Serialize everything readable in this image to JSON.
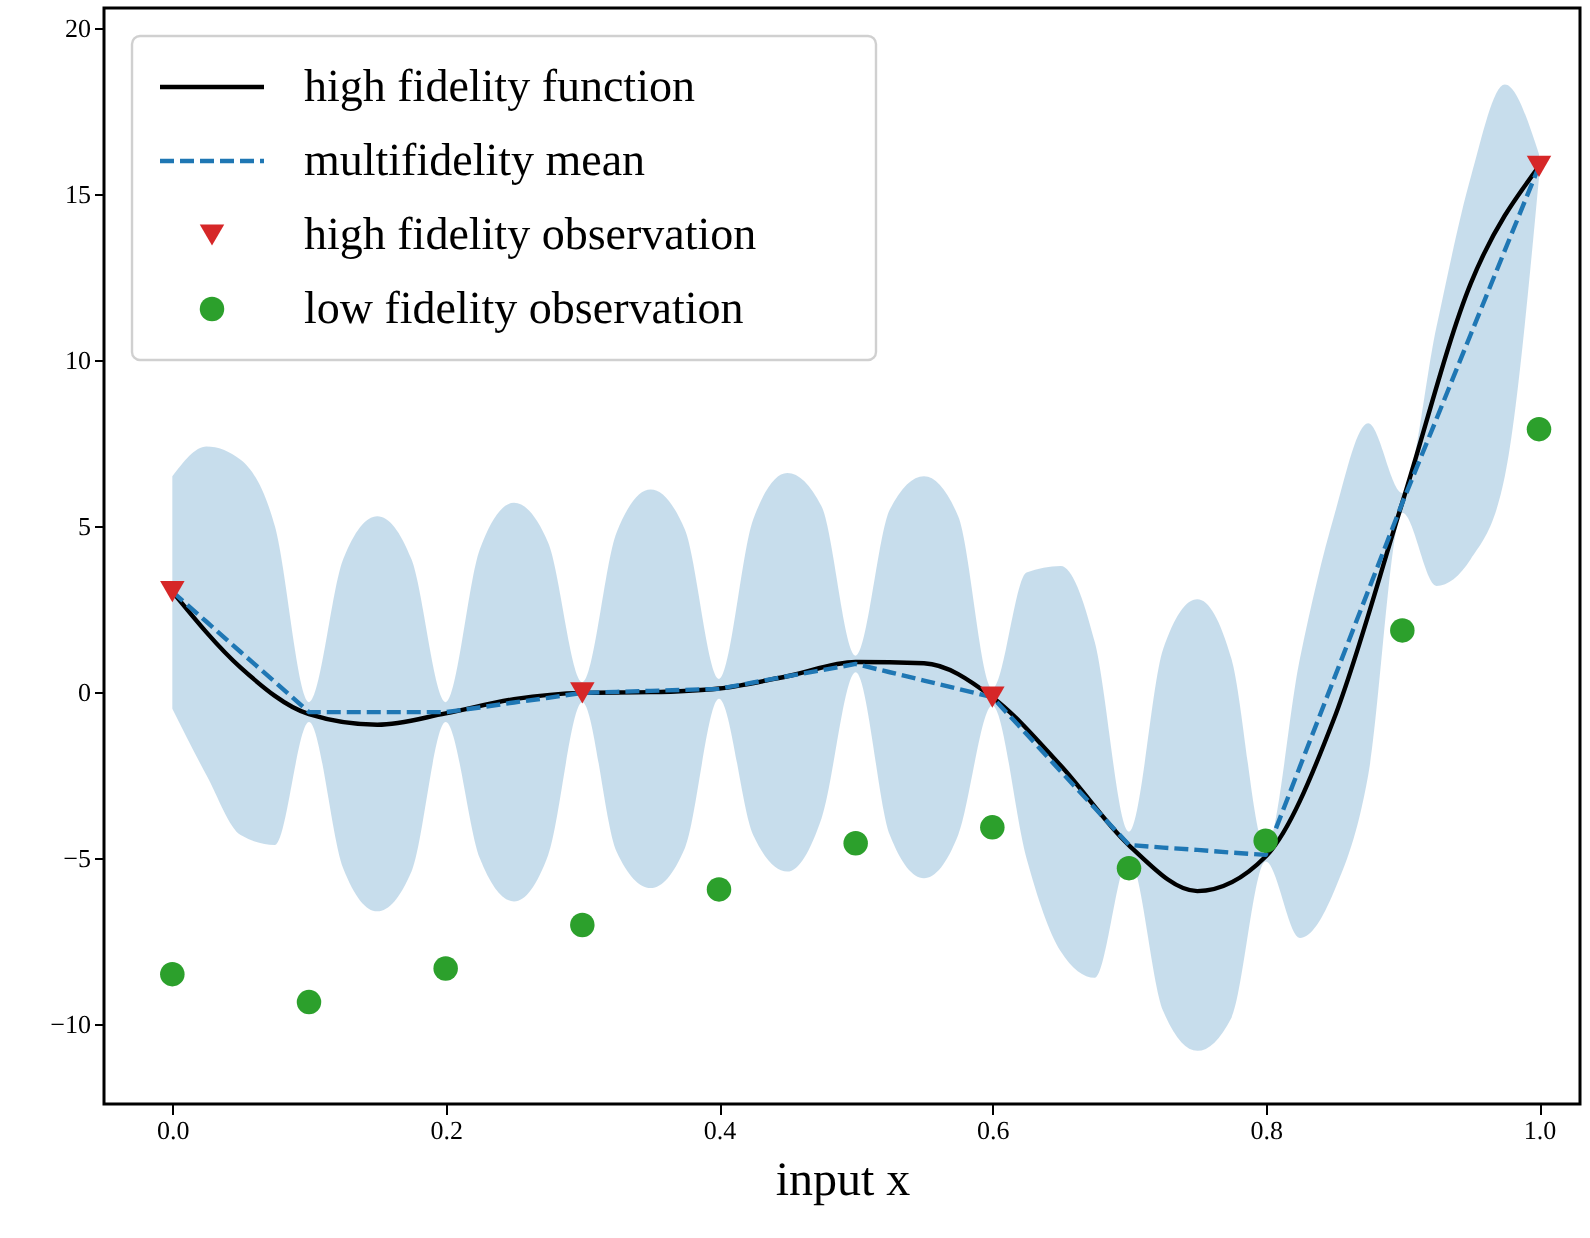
{
  "chart_data": {
    "type": "line",
    "xlabel": "input x",
    "xlim": [
      -0.05,
      1.03
    ],
    "ylim": [
      -12.4,
      20.6
    ],
    "xticks": [
      {
        "value": 0,
        "label": "0.0"
      },
      {
        "value": 0.2,
        "label": "0.2"
      },
      {
        "value": 0.4,
        "label": "0.4"
      },
      {
        "value": 0.6,
        "label": "0.6"
      },
      {
        "value": 0.8,
        "label": "0.8"
      },
      {
        "value": 1,
        "label": "1.0"
      }
    ],
    "yticks": [
      {
        "value": -10,
        "label": "−10"
      },
      {
        "value": -5,
        "label": "−5"
      },
      0,
      5,
      10,
      15,
      20
    ],
    "grid": false,
    "legend": "top left",
    "series": [
      {
        "name": "high fidelity function",
        "type": "line",
        "color": "#000000",
        "line_style": "solid",
        "marker": "none",
        "x": [
          0,
          0.05,
          0.1,
          0.15,
          0.2,
          0.25,
          0.3,
          0.35,
          0.4,
          0.45,
          0.5,
          0.55,
          0.6,
          0.65,
          0.7,
          0.75,
          0.8,
          0.85,
          0.9,
          0.95,
          1.0
        ],
        "values": [
          3.03,
          0.74,
          -0.66,
          -0.98,
          -0.64,
          -0.21,
          -0.02,
          0.0,
          0.11,
          0.48,
          0.91,
          0.87,
          -0.15,
          -2.21,
          -4.61,
          -5.99,
          -4.95,
          -0.8,
          5.71,
          12.3,
          15.83
        ]
      },
      {
        "name": "multifidelity mean",
        "type": "line",
        "color": "#1f77b4",
        "line_style": "dashed",
        "marker": "none",
        "x": [
          0,
          0.025,
          0.05,
          0.075,
          0.1,
          0.125,
          0.15,
          0.175,
          0.2,
          0.225,
          0.25,
          0.275,
          0.3,
          0.325,
          0.35,
          0.375,
          0.4,
          0.425,
          0.45,
          0.475,
          0.5,
          0.525,
          0.55,
          0.575,
          0.6,
          0.625,
          0.65,
          0.675,
          0.7,
          0.725,
          0.75,
          0.775,
          0.8,
          0.825,
          0.85,
          0.875,
          0.9,
          0.925,
          0.95,
          0.975,
          1.0
        ],
        "values": [
          3.03,
          2.12,
          1.21,
          0.31,
          -0.6,
          -0.6,
          -0.6,
          -0.6,
          -0.6,
          -0.46,
          -0.31,
          -0.17,
          -0.02,
          0.01,
          0.04,
          0.07,
          0.1,
          0.29,
          0.48,
          0.66,
          0.85,
          0.6,
          0.35,
          0.1,
          -0.15,
          -1.26,
          -2.38,
          -3.49,
          -4.6,
          -4.68,
          -4.75,
          -4.83,
          -4.9,
          -2.25,
          0.4,
          3.05,
          5.7,
          8.23,
          10.77,
          13.3,
          15.83
        ],
        "upper": [
          6.5,
          7.4,
          7.0,
          5.0,
          -0.3,
          4.0,
          5.3,
          4.0,
          -0.3,
          4.3,
          5.7,
          4.5,
          0.3,
          4.8,
          6.1,
          4.9,
          0.4,
          5.2,
          6.6,
          5.6,
          1.1,
          5.5,
          6.5,
          5.3,
          0.1,
          3.6,
          3.8,
          1.5,
          -4.2,
          1.3,
          2.8,
          1.0,
          -4.7,
          1.0,
          5.3,
          8.1,
          6.0,
          11.0,
          15.5,
          18.3,
          16.2
        ],
        "lower": [
          -0.5,
          -2.5,
          -4.3,
          -4.6,
          -0.9,
          -5.3,
          -6.6,
          -5.4,
          -0.9,
          -5.0,
          -6.3,
          -4.9,
          -0.3,
          -4.8,
          -5.9,
          -4.7,
          -0.2,
          -4.3,
          -5.4,
          -3.8,
          0.6,
          -4.3,
          -5.6,
          -4.3,
          -0.4,
          -5.0,
          -7.8,
          -8.6,
          -5.0,
          -9.6,
          -10.8,
          -9.8,
          -5.1,
          -7.4,
          -6.0,
          -2.5,
          5.4,
          3.2,
          4.0,
          6.5,
          15.5
        ]
      },
      {
        "name": "high fidelity observation",
        "type": "scatter",
        "color": "#d62728",
        "marker": "triangle",
        "x": [
          0,
          0.3,
          0.6,
          1.0
        ],
        "values": [
          3.03,
          -0.02,
          -0.15,
          15.83
        ]
      },
      {
        "name": "low fidelity observation",
        "type": "scatter",
        "color": "#2ca02c",
        "marker": "circle",
        "x": [
          0,
          0.1,
          0.2,
          0.3,
          0.4,
          0.5,
          0.6,
          0.7,
          0.8,
          0.9,
          1.0
        ],
        "values": [
          -8.49,
          -9.33,
          -8.32,
          -7.01,
          -5.94,
          -4.55,
          -4.07,
          -5.3,
          -4.47,
          1.86,
          7.92
        ]
      }
    ]
  }
}
